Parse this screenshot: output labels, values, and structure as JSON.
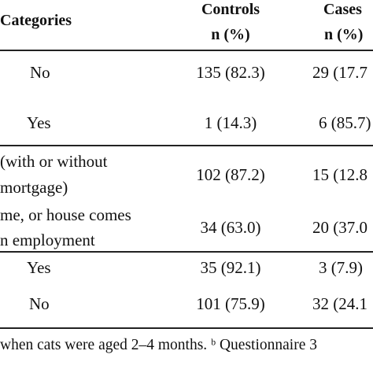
{
  "table": {
    "headers": {
      "categories": "Categories",
      "controls": "Controls",
      "controls_unit": "n (%)",
      "cases": "Cases",
      "cases_unit": "n (%)"
    },
    "rows": [
      {
        "category": "No",
        "controls": "135 (82.3)",
        "cases": "29 (17.7"
      },
      {
        "category": "Yes",
        "controls": "1 (14.3)",
        "cases": "6 (85.7)"
      },
      {
        "category_line1": "(with or without",
        "category_line2": "mortgage)",
        "controls": "102 (87.2)",
        "cases": "15 (12.8"
      },
      {
        "category_line1": "me, or house comes",
        "category_line2": "n employment",
        "controls": "34 (63.0)",
        "cases": "20 (37.0"
      },
      {
        "category": "Yes",
        "controls": "35 (92.1)",
        "cases": "3 (7.9)"
      },
      {
        "category": "No",
        "controls": "101 (75.9)",
        "cases": "32 (24.1"
      }
    ],
    "footnote": "when cats were aged 2–4 months. ᵇ Questionnaire 3"
  }
}
